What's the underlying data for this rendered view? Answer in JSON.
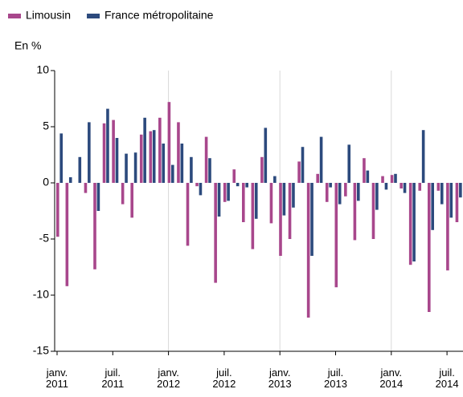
{
  "chart_data": {
    "type": "bar",
    "y_label": "En %",
    "categories": [
      "janv. 2011",
      null,
      null,
      null,
      null,
      null,
      "juil. 2011",
      null,
      null,
      null,
      null,
      null,
      "janv. 2012",
      null,
      null,
      null,
      null,
      null,
      "juil. 2012",
      null,
      null,
      null,
      null,
      null,
      "janv. 2013",
      null,
      null,
      null,
      null,
      null,
      "juil. 2013",
      null,
      null,
      null,
      null,
      null,
      "janv. 2014",
      null,
      null,
      null,
      null,
      null,
      "juil. 2014",
      null
    ],
    "series": [
      {
        "name": "Limousin",
        "color": "#a8478c",
        "values": [
          -4.8,
          -9.2,
          0,
          -0.9,
          -7.7,
          5.3,
          5.6,
          -1.9,
          -3.1,
          4.3,
          4.6,
          5.8,
          7.2,
          5.4,
          -5.6,
          -0.3,
          4.1,
          -8.9,
          -1.7,
          1.2,
          -3.5,
          -5.9,
          2.3,
          -3.6,
          -6.5,
          -5.0,
          1.9,
          -12.0,
          0.8,
          -1.7,
          -9.3,
          -1.2,
          -5.1,
          2.2,
          -5.0,
          0.6,
          0.7,
          -0.5,
          -7.3,
          -0.7,
          -11.5,
          -0.7,
          -7.8,
          -3.5
        ]
      },
      {
        "name": "France métropolitaine",
        "color": "#2c4a7d",
        "values": [
          4.4,
          0.5,
          2.3,
          5.4,
          -2.5,
          6.6,
          4.0,
          2.6,
          2.7,
          5.8,
          4.7,
          3.5,
          1.6,
          3.5,
          2.3,
          -1.1,
          2.2,
          -3.0,
          -1.6,
          -0.3,
          -0.4,
          -3.2,
          4.9,
          0.6,
          -2.9,
          -2.2,
          3.2,
          -6.5,
          4.1,
          -0.4,
          -1.9,
          3.4,
          -1.6,
          1.1,
          -2.4,
          -0.6,
          0.8,
          -0.9,
          -7.0,
          4.7,
          -4.2,
          -1.9,
          -3.1,
          -1.3
        ]
      }
    ],
    "ylim": [
      -15,
      10
    ],
    "yticks": [
      -15,
      -10,
      -5,
      0,
      5,
      10
    ],
    "legend": "top-left"
  }
}
